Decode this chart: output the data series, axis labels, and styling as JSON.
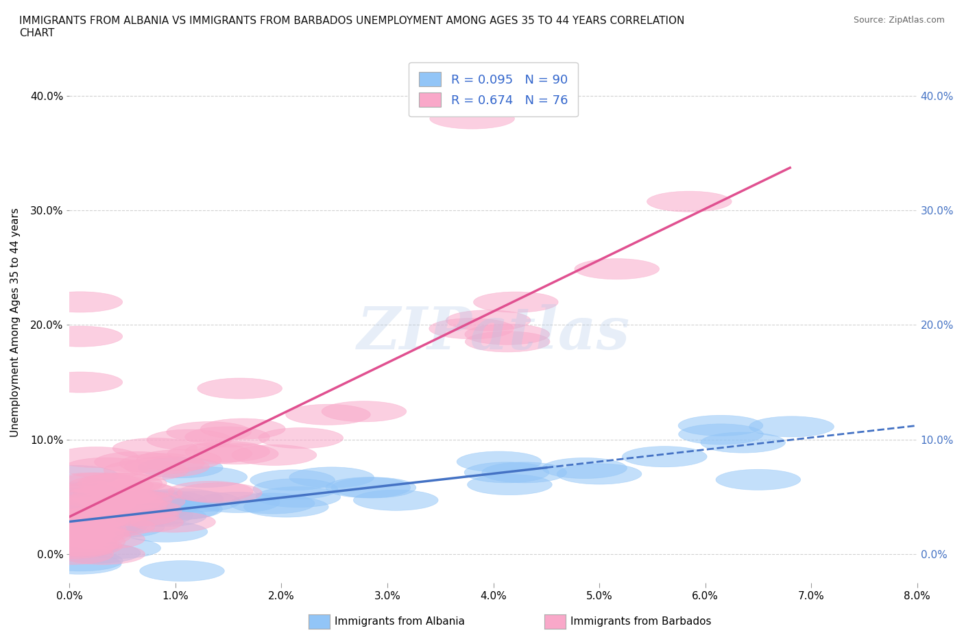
{
  "title": "IMMIGRANTS FROM ALBANIA VS IMMIGRANTS FROM BARBADOS UNEMPLOYMENT AMONG AGES 35 TO 44 YEARS CORRELATION\nCHART",
  "source": "Source: ZipAtlas.com",
  "ylabel": "Unemployment Among Ages 35 to 44 years",
  "xlim": [
    0.0,
    0.08
  ],
  "ylim": [
    -0.025,
    0.43
  ],
  "xticks": [
    0.0,
    0.01,
    0.02,
    0.03,
    0.04,
    0.05,
    0.06,
    0.07,
    0.08
  ],
  "yticks": [
    0.0,
    0.1,
    0.2,
    0.3,
    0.4
  ],
  "albania_color": "#92c5f7",
  "barbados_color": "#f9a8c9",
  "albania_line_color": "#4472c4",
  "barbados_line_color": "#e05090",
  "albania_R": 0.095,
  "albania_N": 90,
  "barbados_R": 0.674,
  "barbados_N": 76,
  "watermark": "ZIPatlas",
  "background_color": "#ffffff",
  "grid_color": "#cccccc"
}
